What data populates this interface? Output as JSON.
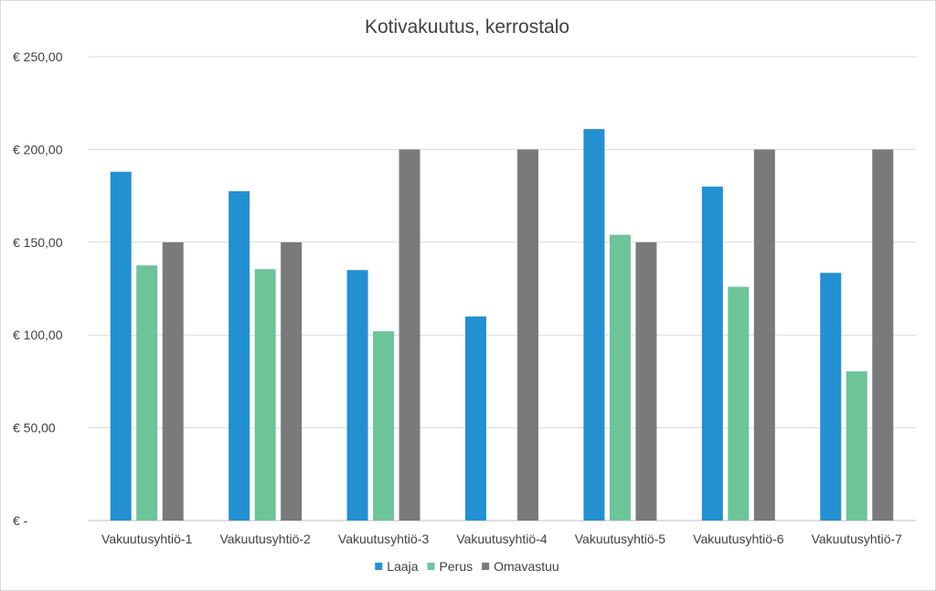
{
  "chart_data": {
    "type": "bar",
    "title": "Kotivakuutus, kerrostalo",
    "categories": [
      "Vakuutusyhtiö-1",
      "Vakuutusyhtiö-2",
      "Vakuutusyhtiö-3",
      "Vakuutusyhtiö-4",
      "Vakuutusyhtiö-5",
      "Vakuutusyhtiö-6",
      "Vakuutusyhtiö-7"
    ],
    "series": [
      {
        "name": "Laaja",
        "color": "#2390d2",
        "values": [
          188,
          177.5,
          135,
          110,
          211,
          180,
          133.5
        ]
      },
      {
        "name": "Perus",
        "color": "#6cc498",
        "values": [
          137.5,
          135.5,
          102,
          null,
          154,
          126,
          80.5
        ]
      },
      {
        "name": "Omavastuu",
        "color": "#7a7a7a",
        "values": [
          150,
          150,
          200,
          200,
          150,
          200,
          200
        ]
      }
    ],
    "ylim": [
      0,
      250
    ],
    "y_ticks": [
      0,
      50,
      100,
      150,
      200,
      250
    ],
    "y_tick_labels": [
      "€ -",
      "€ 50,00",
      "€ 100,00",
      "€ 150,00",
      "€ 200,00",
      "€ 250,00"
    ],
    "xlabel": "",
    "ylabel": "",
    "grid": true,
    "legend_position": "bottom"
  }
}
